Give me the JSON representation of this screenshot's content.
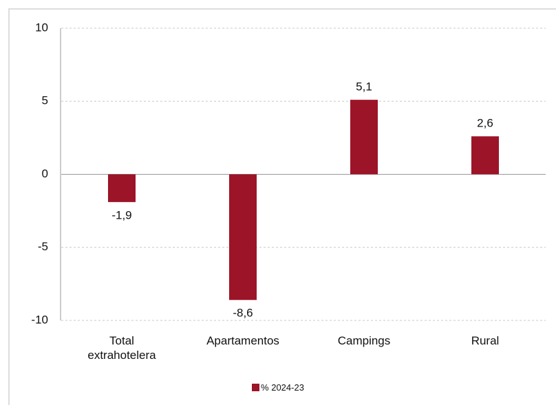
{
  "chart_data": {
    "type": "bar",
    "categories": [
      "Total extrahotelera",
      "Apartamentos",
      "Campings",
      "Rural"
    ],
    "series": [
      {
        "name": "% 2024-23",
        "color": "#9c1428",
        "values": [
          -1.9,
          -8.6,
          5.1,
          2.6
        ],
        "value_labels": [
          "-1,9",
          "-8,6",
          "5,1",
          "2,6"
        ]
      }
    ],
    "ylim": [
      -10,
      10
    ],
    "yticks": [
      10,
      5,
      0,
      -5,
      -10
    ],
    "grid": true,
    "legend": "bottom"
  }
}
